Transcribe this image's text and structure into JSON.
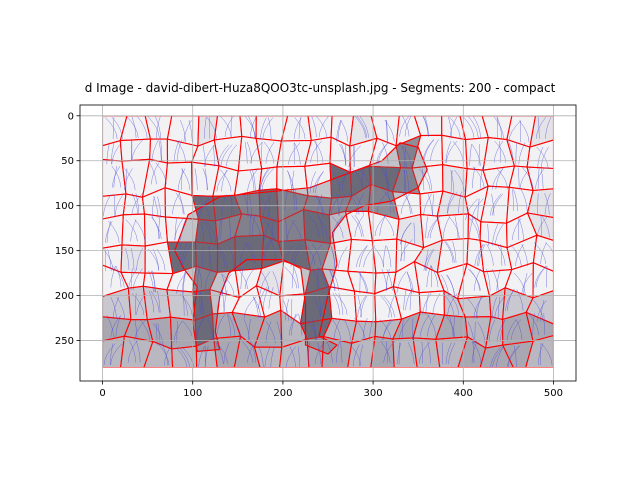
{
  "chart_data": {
    "type": "image",
    "title": "d Image - david-dibert-Huza8QOO3tc-unsplash.jpg - Segments: 200 - compact",
    "xlabel": "",
    "ylabel": "",
    "xlim": [
      -25,
      525
    ],
    "ylim": [
      295,
      -12
    ],
    "x_ticks": [
      0,
      100,
      200,
      300,
      400,
      500
    ],
    "y_ticks": [
      0,
      50,
      100,
      150,
      200,
      250
    ],
    "grid": true,
    "image_extent": {
      "x": [
        0,
        500
      ],
      "y": [
        0,
        280
      ]
    },
    "segment_count": 200,
    "colors": {
      "background_light": "#f2f1f4",
      "background_mid": "#c9c7cf",
      "subject_dark": "#6b6a78",
      "floor": "#b9b7c0",
      "boundary": "#ff0000",
      "flow_lines": "#4b4bd6",
      "grid": "#b0b0b0"
    }
  }
}
